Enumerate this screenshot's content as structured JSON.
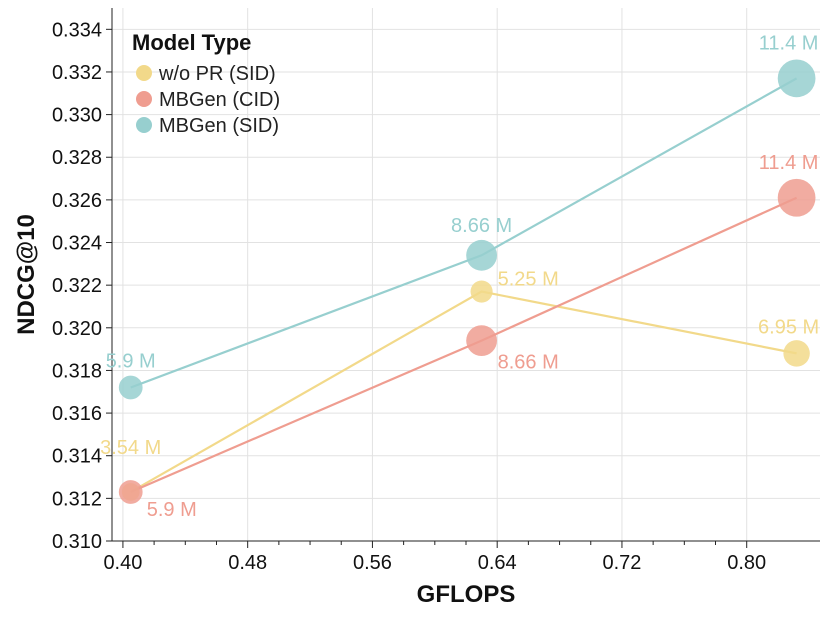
{
  "chart_data": {
    "type": "scatter",
    "xlabel": "GFLOPS",
    "ylabel": "NDCG@10",
    "xlim": [
      0.393,
      0.847
    ],
    "ylim": [
      0.31,
      0.335
    ],
    "x_ticks": [
      {
        "value": 0.4,
        "label": "0.40"
      },
      {
        "value": 0.48,
        "label": "0.48"
      },
      {
        "value": 0.56,
        "label": "0.56"
      },
      {
        "value": 0.64,
        "label": "0.64"
      },
      {
        "value": 0.72,
        "label": "0.72"
      },
      {
        "value": 0.8,
        "label": "0.80"
      }
    ],
    "y_ticks": [
      {
        "value": 0.31,
        "label": "0.310"
      },
      {
        "value": 0.312,
        "label": "0.312"
      },
      {
        "value": 0.314,
        "label": "0.314"
      },
      {
        "value": 0.316,
        "label": "0.316"
      },
      {
        "value": 0.318,
        "label": "0.318"
      },
      {
        "value": 0.32,
        "label": "0.320"
      },
      {
        "value": 0.322,
        "label": "0.322"
      },
      {
        "value": 0.324,
        "label": "0.324"
      },
      {
        "value": 0.326,
        "label": "0.326"
      },
      {
        "value": 0.328,
        "label": "0.328"
      },
      {
        "value": 0.33,
        "label": "0.330"
      },
      {
        "value": 0.332,
        "label": "0.332"
      },
      {
        "value": 0.334,
        "label": "0.334"
      }
    ],
    "grid": true,
    "legend": {
      "title": "Model Type",
      "placement": "top-left",
      "items": [
        "w/o PR (SID)",
        "MBGen (CID)",
        "MBGen (SID)"
      ]
    },
    "series": [
      {
        "name": "w/o PR (SID)",
        "color": "#f2d98a",
        "points": [
          {
            "x": 0.405,
            "y": 0.3123,
            "params": 3.54,
            "label": "3.54 M",
            "label_pos": "above"
          },
          {
            "x": 0.63,
            "y": 0.3217,
            "params": 5.25,
            "label": "5.25 M",
            "label_pos": "right"
          },
          {
            "x": 0.832,
            "y": 0.3188,
            "params": 6.95,
            "label": "6.95 M",
            "label_pos": "above"
          }
        ]
      },
      {
        "name": "MBGen (CID)",
        "color": "#ef9d90",
        "points": [
          {
            "x": 0.405,
            "y": 0.3123,
            "params": 5.9,
            "label": "5.9 M",
            "label_pos": "below-right"
          },
          {
            "x": 0.63,
            "y": 0.3194,
            "params": 8.66,
            "label": "8.66 M",
            "label_pos": "right"
          },
          {
            "x": 0.832,
            "y": 0.3261,
            "params": 11.4,
            "label": "11.4 M",
            "label_pos": "above"
          }
        ]
      },
      {
        "name": "MBGen (SID)",
        "color": "#97cfcf",
        "points": [
          {
            "x": 0.405,
            "y": 0.3172,
            "params": 5.9,
            "label": "5.9 M",
            "label_pos": "above"
          },
          {
            "x": 0.63,
            "y": 0.3234,
            "params": 8.66,
            "label": "8.66 M",
            "label_pos": "above"
          },
          {
            "x": 0.832,
            "y": 0.3317,
            "params": 11.4,
            "label": "11.4 M",
            "label_pos": "above"
          }
        ]
      }
    ]
  }
}
